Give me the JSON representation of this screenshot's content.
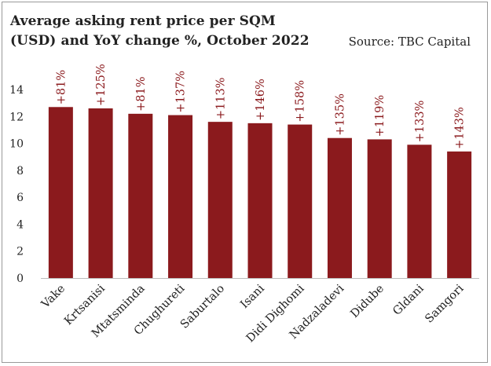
{
  "header": {
    "title_line1": "Average asking rent price per SQM",
    "title_line2": "(USD) and YoY change %, October 2022",
    "source": "Source: TBC Capital"
  },
  "colors": {
    "bar": "#8b1a1d",
    "label": "#8b1a1d",
    "text": "#222222",
    "axis": "#bdbdbd"
  },
  "chart_data": {
    "type": "bar",
    "title": "Average asking rent price per SQM (USD) and YoY change %, October 2022",
    "xlabel": "",
    "ylabel": "",
    "ylim": [
      0,
      14
    ],
    "yticks": [
      0,
      2,
      4,
      6,
      8,
      10,
      12,
      14
    ],
    "grid": false,
    "categories": [
      "Vake",
      "Krtsanisi",
      "Mtatsminda",
      "Chughureti",
      "Saburtalo",
      "Isani",
      "Didi Dighomi",
      "Nadzaladevi",
      "Didube",
      "Gldani",
      "Samgori"
    ],
    "values": [
      12.7,
      12.6,
      12.2,
      12.1,
      11.6,
      11.5,
      11.4,
      10.4,
      10.3,
      9.9,
      9.4
    ],
    "data_labels": [
      "+81%",
      "+125%",
      "+81%",
      "+137%",
      "+113%",
      "+146%",
      "+158%",
      "+135%",
      "+119%",
      "+133%",
      "+143%"
    ]
  }
}
